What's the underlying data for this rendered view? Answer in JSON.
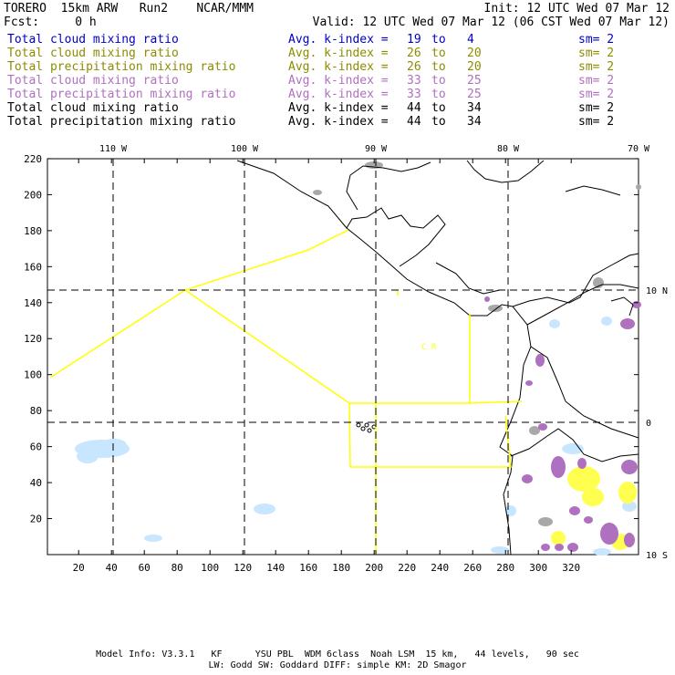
{
  "header": {
    "model": "TORERO",
    "res": "15km ARW",
    "run": "Run2",
    "org": "NCAR/MMM",
    "init": "Init: 12 UTC Wed 07 Mar 12",
    "fcst_label": "Fcst:",
    "fcst_value": "0 h",
    "valid": "Valid: 12 UTC Wed 07 Mar 12 (06 CST Wed 07 Mar 12)"
  },
  "legend": [
    {
      "field": "Total cloud mixing ratio",
      "kindex": "Avg. k-index =",
      "a": "19",
      "b": "4",
      "sm": "sm= 2",
      "color": "#0000cc"
    },
    {
      "field": "Total cloud mixing ratio",
      "kindex": "Avg. k-index =",
      "a": "26",
      "b": "20",
      "sm": "sm= 2",
      "color": "#8c8c00"
    },
    {
      "field": "Total precipitation mixing ratio",
      "kindex": "Avg. k-index =",
      "a": "26",
      "b": "20",
      "sm": "sm= 2",
      "color": "#8c8c00"
    },
    {
      "field": "Total cloud mixing ratio",
      "kindex": "Avg. k-index =",
      "a": "33",
      "b": "25",
      "sm": "sm= 2",
      "color": "#b070c0"
    },
    {
      "field": "Total precipitation mixing ratio",
      "kindex": "Avg. k-index =",
      "a": "33",
      "b": "25",
      "sm": "sm= 2",
      "color": "#b070c0"
    },
    {
      "field": "Total cloud mixing ratio",
      "kindex": "Avg. k-index =",
      "a": "44",
      "b": "34",
      "sm": "sm= 2",
      "color": "#000000"
    },
    {
      "field": "Total precipitation mixing ratio",
      "kindex": "Avg. k-index =",
      "a": "44",
      "b": "34",
      "sm": "sm= 2",
      "color": "#000000"
    }
  ],
  "word_to": "to",
  "map": {
    "lon_labels": [
      "110 W",
      "100 W",
      "90 W",
      "80 W",
      "70 W"
    ],
    "lat_labels": [
      "10 N",
      "0",
      "10 S"
    ],
    "x_ticks": [
      "20",
      "40",
      "60",
      "80",
      "100",
      "120",
      "140",
      "160",
      "180",
      "200",
      "220",
      "240",
      "260",
      "280",
      "300",
      "320"
    ],
    "y_ticks": [
      "20",
      "40",
      "60",
      "80",
      "100",
      "120",
      "140",
      "160",
      "180",
      "200",
      "220"
    ],
    "region_label": "C R",
    "colors": {
      "coast": "#000000",
      "boundary": "#ffff00",
      "grid": "#000000",
      "cloud_light": "#c8e6ff",
      "cloud_gray": "#a8a8a8",
      "precip_purple": "#b070c0",
      "precip_yellow": "#ffff50"
    }
  },
  "footer": {
    "line1": "Model Info: V3.3.1   KF      YSU PBL  WDM 6class  Noah LSM  15 km,   44 levels,   90 sec",
    "line2": "LW: Godd SW: Goddard DIFF: simple KM: 2D Smagor"
  }
}
